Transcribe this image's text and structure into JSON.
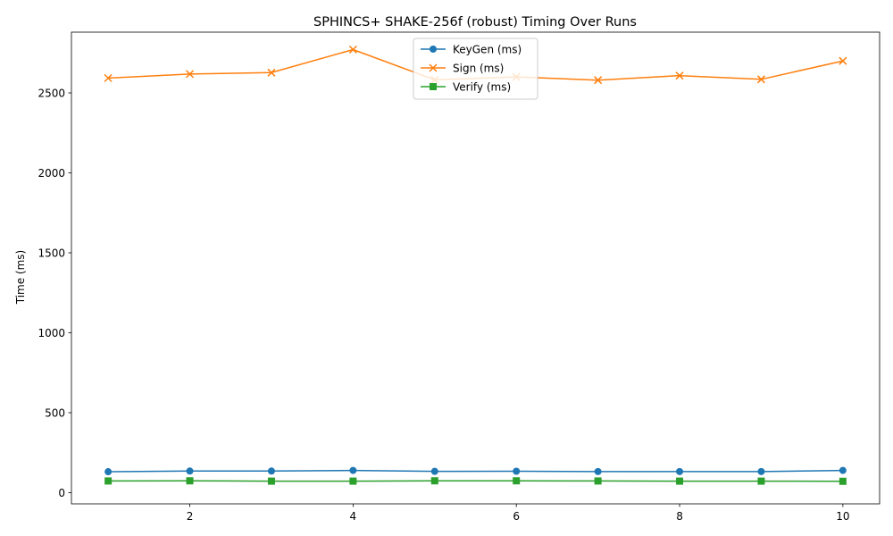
{
  "chart_data": {
    "type": "line",
    "title": "SPHINCS+ SHAKE-256f (robust) Timing Over Runs",
    "xlabel": "",
    "ylabel": "Time (ms)",
    "xlim": [
      0.55,
      10.45
    ],
    "ylim": [
      -70,
      2880
    ],
    "x": [
      1,
      2,
      3,
      4,
      5,
      6,
      7,
      8,
      9,
      10
    ],
    "x_ticks": [
      2,
      4,
      6,
      8,
      10
    ],
    "y_ticks": [
      0,
      500,
      1000,
      1500,
      2000,
      2500
    ],
    "grid": false,
    "legend_position": "upper-center",
    "series": [
      {
        "name": "KeyGen (ms)",
        "color": "#1f77b4",
        "marker": "circle",
        "values": [
          131,
          135,
          135,
          139,
          133,
          134,
          132,
          132,
          132,
          139
        ]
      },
      {
        "name": "Sign (ms)",
        "color": "#ff7f0e",
        "marker": "x",
        "values": [
          2593,
          2618,
          2627,
          2771,
          2582,
          2600,
          2580,
          2608,
          2585,
          2700
        ]
      },
      {
        "name": "Verify (ms)",
        "color": "#2ca02c",
        "marker": "square",
        "values": [
          73,
          74,
          72,
          72,
          74,
          74,
          73,
          72,
          72,
          71
        ]
      }
    ]
  }
}
